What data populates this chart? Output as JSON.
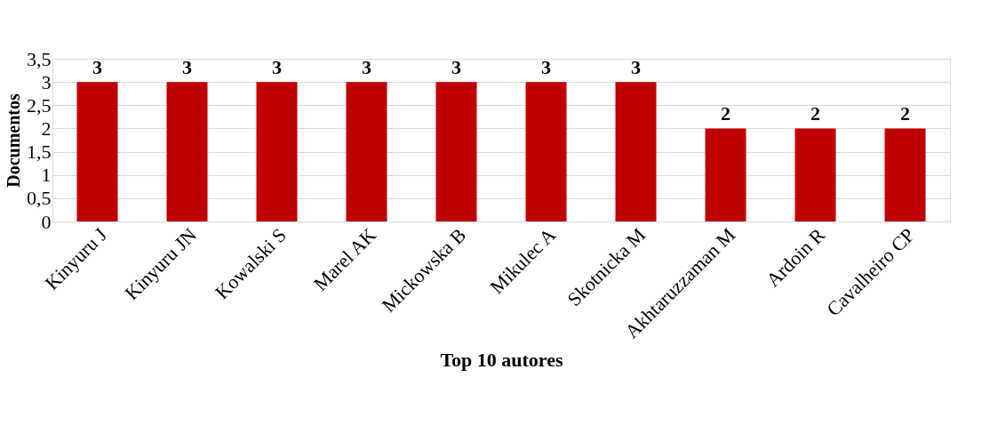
{
  "chart_data": {
    "type": "bar",
    "xlabel": "Top 10 autores",
    "ylabel": "Documentos",
    "categories": [
      "Kinyuru J",
      "Kinyuru JN",
      "Kowalski S",
      "Marel AK",
      "Mickowska B",
      "Mikulec A",
      "Skotnicka M",
      "Akhtaruzzaman M",
      "Ardoin R",
      "Cavalheiro CP"
    ],
    "values": [
      3,
      3,
      3,
      3,
      3,
      3,
      3,
      2,
      2,
      2
    ],
    "color": "#c00000",
    "ylim": [
      0,
      3.5
    ],
    "yticks": [
      0,
      {
        "value": 0.5,
        "label": "0,5"
      },
      1,
      {
        "value": 1.5,
        "label": "1,5"
      },
      2,
      {
        "value": 2.5,
        "label": "2,5"
      },
      3,
      {
        "value": 3.5,
        "label": "3,5"
      }
    ],
    "grid": "y",
    "data_labels": true
  }
}
